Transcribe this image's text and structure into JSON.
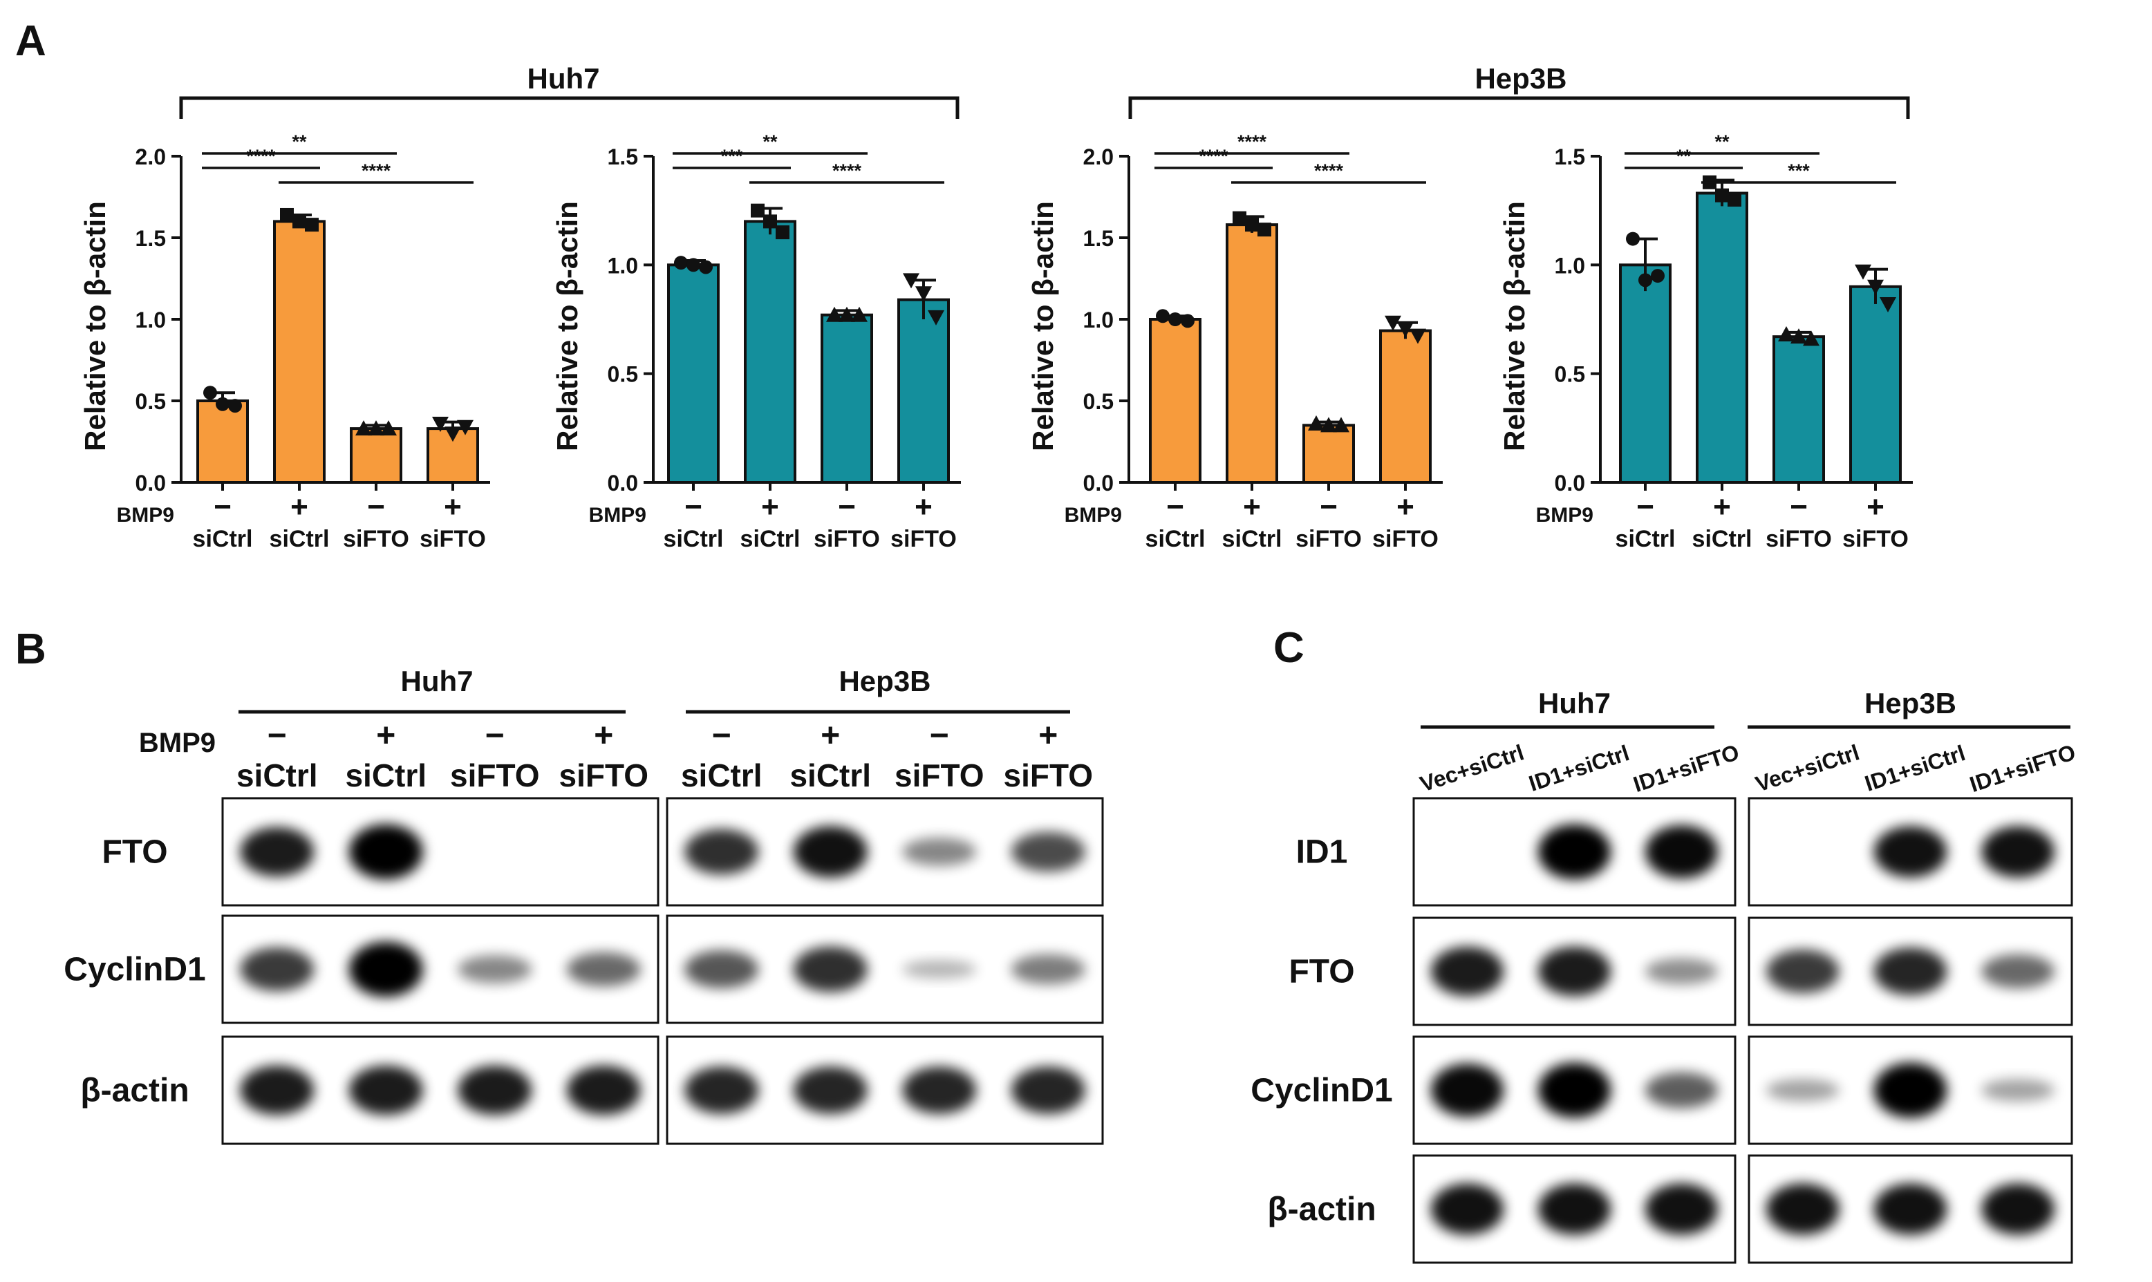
{
  "panel_labels": {
    "a": "A",
    "b": "B",
    "c": "C"
  },
  "colors": {
    "orange": "#F79B3C",
    "teal": "#148F9C",
    "black": "#111111"
  },
  "group_headers": {
    "huh7": "Huh7",
    "hep3b": "Hep3B"
  },
  "row_labels": {
    "bmp9": "BMP9"
  },
  "bmp_signs": [
    "−",
    "+",
    "−",
    "+"
  ],
  "conditions": [
    "siCtrl",
    "siCtrl",
    "siFTO",
    "siFTO"
  ],
  "chart_data": [
    {
      "type": "bar",
      "cell_line": "Huh7",
      "color": "orange",
      "categories": [
        "siCtrl",
        "siCtrl",
        "siFTO",
        "siFTO"
      ],
      "bmp9": [
        "−",
        "+",
        "−",
        "+"
      ],
      "values": [
        0.5,
        1.6,
        0.33,
        0.33
      ],
      "errors": [
        0.05,
        0.04,
        0.02,
        0.04
      ],
      "points": [
        [
          0.55,
          0.48,
          0.47
        ],
        [
          1.64,
          1.6,
          1.58
        ],
        [
          0.33,
          0.33,
          0.33
        ],
        [
          0.36,
          0.3,
          0.34
        ]
      ],
      "ylabel": "Relative to β-actin",
      "ylim": [
        0,
        2.0
      ],
      "yticks": [
        "0.0",
        "0.5",
        "1.0",
        "1.5",
        "2.0"
      ],
      "significance": [
        {
          "from": 0,
          "to": 2,
          "label": "**",
          "level": 2
        },
        {
          "from": 0,
          "to": 1,
          "label": "****",
          "level": 1
        },
        {
          "from": 1,
          "to": 3,
          "label": "****",
          "level": 0
        }
      ]
    },
    {
      "type": "bar",
      "cell_line": "Huh7",
      "color": "teal",
      "categories": [
        "siCtrl",
        "siCtrl",
        "siFTO",
        "siFTO"
      ],
      "bmp9": [
        "−",
        "+",
        "−",
        "+"
      ],
      "values": [
        1.0,
        1.2,
        0.77,
        0.84
      ],
      "errors": [
        0.02,
        0.06,
        0.02,
        0.09
      ],
      "points": [
        [
          1.01,
          1.0,
          0.99
        ],
        [
          1.25,
          1.2,
          1.15
        ],
        [
          0.77,
          0.77,
          0.77
        ],
        [
          0.93,
          0.87,
          0.76
        ]
      ],
      "ylabel": "Relative to β-actin",
      "ylim": [
        0,
        1.5
      ],
      "yticks": [
        "0.0",
        "0.5",
        "1.0",
        "1.5"
      ],
      "significance": [
        {
          "from": 0,
          "to": 2,
          "label": "**",
          "level": 2
        },
        {
          "from": 0,
          "to": 1,
          "label": "***",
          "level": 1
        },
        {
          "from": 1,
          "to": 3,
          "label": "****",
          "level": 0
        }
      ]
    },
    {
      "type": "bar",
      "cell_line": "Hep3B",
      "color": "orange",
      "categories": [
        "siCtrl",
        "siCtrl",
        "siFTO",
        "siFTO"
      ],
      "bmp9": [
        "−",
        "+",
        "−",
        "+"
      ],
      "values": [
        1.0,
        1.58,
        0.35,
        0.93
      ],
      "errors": [
        0.02,
        0.05,
        0.02,
        0.05
      ],
      "points": [
        [
          1.02,
          1.0,
          0.99
        ],
        [
          1.62,
          1.58,
          1.55
        ],
        [
          0.36,
          0.35,
          0.35
        ],
        [
          0.98,
          0.94,
          0.9
        ]
      ],
      "ylabel": "Relative to β-actin",
      "ylim": [
        0,
        2.0
      ],
      "yticks": [
        "0.0",
        "0.5",
        "1.0",
        "1.5",
        "2.0"
      ],
      "significance": [
        {
          "from": 0,
          "to": 2,
          "label": "****",
          "level": 2
        },
        {
          "from": 0,
          "to": 1,
          "label": "****",
          "level": 1
        },
        {
          "from": 1,
          "to": 3,
          "label": "****",
          "level": 0
        }
      ]
    },
    {
      "type": "bar",
      "cell_line": "Hep3B",
      "color": "teal",
      "categories": [
        "siCtrl",
        "siCtrl",
        "siFTO",
        "siFTO"
      ],
      "bmp9": [
        "−",
        "+",
        "−",
        "+"
      ],
      "values": [
        1.0,
        1.33,
        0.67,
        0.9
      ],
      "errors": [
        0.12,
        0.06,
        0.02,
        0.08
      ],
      "points": [
        [
          1.12,
          0.93,
          0.95
        ],
        [
          1.38,
          1.32,
          1.3
        ],
        [
          0.68,
          0.67,
          0.66
        ],
        [
          0.97,
          0.9,
          0.82
        ]
      ],
      "ylabel": "Relative to β-actin",
      "ylim": [
        0,
        1.5
      ],
      "yticks": [
        "0.0",
        "0.5",
        "1.0",
        "1.5"
      ],
      "significance": [
        {
          "from": 0,
          "to": 2,
          "label": "**",
          "level": 2
        },
        {
          "from": 0,
          "to": 1,
          "label": "**",
          "level": 1
        },
        {
          "from": 1,
          "to": 3,
          "label": "***",
          "level": 0
        }
      ]
    }
  ],
  "blot_b": {
    "groups": [
      "Huh7",
      "Hep3B"
    ],
    "bmp9_label": "BMP9",
    "bmp_signs": [
      "−",
      "+",
      "−",
      "+"
    ],
    "lanes": [
      "siCtrl",
      "siCtrl",
      "siFTO",
      "siFTO"
    ],
    "rows": [
      {
        "label": "FTO",
        "intensities": [
          [
            0.85,
            1.0,
            0.0,
            0.0
          ],
          [
            0.75,
            0.9,
            0.3,
            0.6
          ]
        ]
      },
      {
        "label": "CyclinD1",
        "intensities": [
          [
            0.7,
            1.0,
            0.3,
            0.45
          ],
          [
            0.55,
            0.75,
            0.05,
            0.35
          ]
        ]
      },
      {
        "label": "β-actin",
        "intensities": [
          [
            0.85,
            0.85,
            0.85,
            0.85
          ],
          [
            0.8,
            0.8,
            0.8,
            0.8
          ]
        ]
      }
    ]
  },
  "blot_c": {
    "groups": [
      "Huh7",
      "Hep3B"
    ],
    "lanes": [
      "Vec+siCtrl",
      "ID1+siCtrl",
      "ID1+siFTO"
    ],
    "rows": [
      {
        "label": "ID1",
        "intensities": [
          [
            0.0,
            1.0,
            0.95
          ],
          [
            0.0,
            0.9,
            0.9
          ]
        ]
      },
      {
        "label": "FTO",
        "intensities": [
          [
            0.85,
            0.85,
            0.25
          ],
          [
            0.7,
            0.8,
            0.45
          ]
        ]
      },
      {
        "label": "CyclinD1",
        "intensities": [
          [
            0.95,
            1.0,
            0.5
          ],
          [
            0.15,
            1.0,
            0.15
          ]
        ]
      },
      {
        "label": "β-actin",
        "intensities": [
          [
            0.9,
            0.9,
            0.9
          ],
          [
            0.9,
            0.9,
            0.9
          ]
        ]
      }
    ]
  }
}
